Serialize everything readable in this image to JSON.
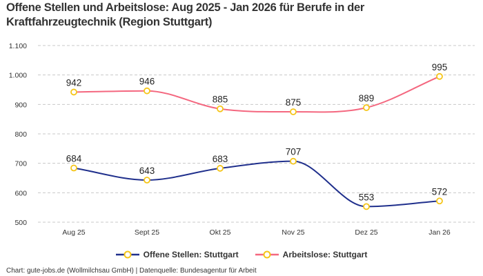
{
  "chart_data": {
    "type": "line",
    "title": "Offene Stellen und Arbeitslose: Aug 2025 - Jan 2026 für Berufe in der Kraftfahrzeugtechnik (Region Stuttgart)",
    "categories": [
      "Aug 25",
      "Sept 25",
      "Okt 25",
      "Nov 25",
      "Dez 25",
      "Jan 26"
    ],
    "yticks": [
      "500",
      "600",
      "700",
      "800",
      "900",
      "1.000",
      "1.100"
    ],
    "ylim": [
      500,
      1100
    ],
    "grid": true,
    "legend_position": "bottom",
    "series": [
      {
        "name": "Offene Stellen: Stuttgart",
        "color": "#1f2f8c",
        "values": [
          684,
          643,
          683,
          707,
          553,
          572
        ]
      },
      {
        "name": "Arbeitslose: Stuttgart",
        "color": "#f4677f",
        "values": [
          942,
          946,
          885,
          875,
          889,
          995
        ]
      }
    ],
    "marker_color": "#f5c518",
    "footer": "Chart: gute-jobs.de (Wollmilchsau GmbH) | Datenquelle: Bundesagentur für Arbeit"
  }
}
